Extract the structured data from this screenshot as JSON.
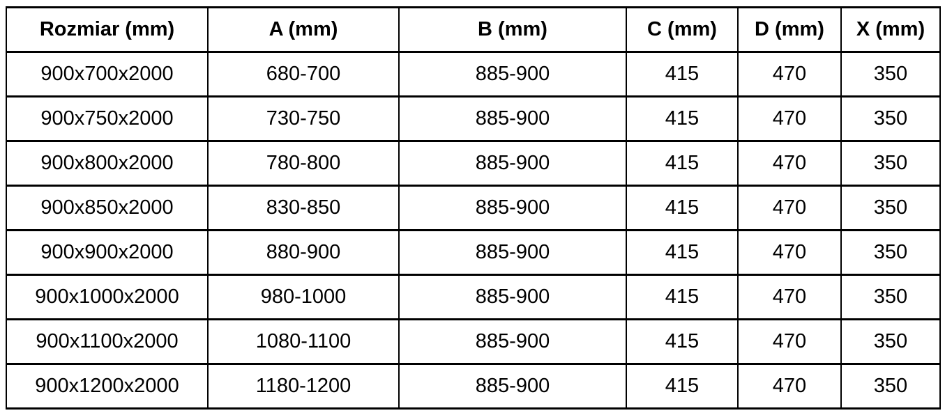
{
  "table": {
    "columns": [
      {
        "key": "rozmiar",
        "label": "Rozmiar (mm)"
      },
      {
        "key": "a",
        "label": "A (mm)"
      },
      {
        "key": "b",
        "label": "B (mm)"
      },
      {
        "key": "c",
        "label": "C (mm)"
      },
      {
        "key": "d",
        "label": "D (mm)"
      },
      {
        "key": "x",
        "label": "X (mm)"
      }
    ],
    "rows": [
      [
        "900x700x2000",
        "680-700",
        "885-900",
        "415",
        "470",
        "350"
      ],
      [
        "900x750x2000",
        "730-750",
        "885-900",
        "415",
        "470",
        "350"
      ],
      [
        "900x800x2000",
        "780-800",
        "885-900",
        "415",
        "470",
        "350"
      ],
      [
        "900x850x2000",
        "830-850",
        "885-900",
        "415",
        "470",
        "350"
      ],
      [
        "900x900x2000",
        "880-900",
        "885-900",
        "415",
        "470",
        "350"
      ],
      [
        "900x1000x2000",
        "980-1000",
        "885-900",
        "415",
        "470",
        "350"
      ],
      [
        "900x1100x2000",
        "1080-1100",
        "885-900",
        "415",
        "470",
        "350"
      ],
      [
        "900x1200x2000",
        "1180-1200",
        "885-900",
        "415",
        "470",
        "350"
      ]
    ],
    "colors": {
      "border": "#000000",
      "text": "#000000",
      "background": "#ffffff"
    }
  }
}
